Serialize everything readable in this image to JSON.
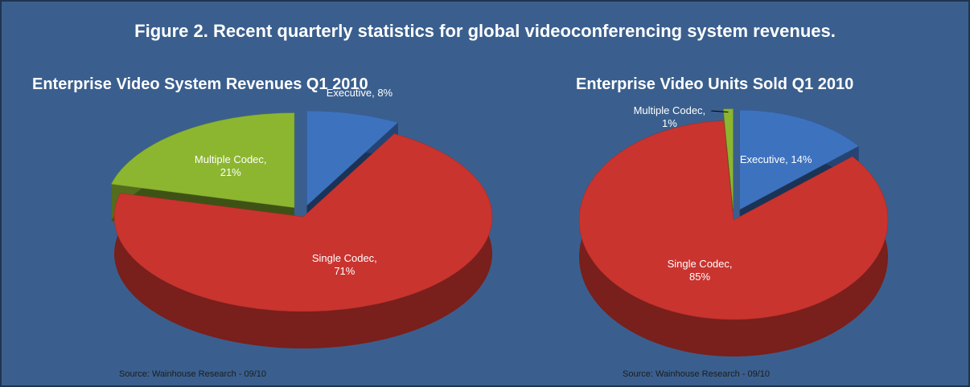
{
  "title": "Figure 2. Recent quarterly statistics for global videoconferencing system revenues.",
  "chart_data": [
    {
      "type": "pie",
      "title": "Enterprise Video System Revenues Q1 2010",
      "values": [
        8,
        71,
        21
      ],
      "value_labels": [
        "Executive, 8%",
        "Single Codec, 71%",
        "Multiple Codec, 21%"
      ],
      "colors": [
        "#3d72bf",
        "#c9342f",
        "#8cb630"
      ],
      "source": "Source: Wainhouse Research - 09/10"
    },
    {
      "type": "pie",
      "title": "Enterprise Video Units Sold Q1 2010",
      "values": [
        14,
        85,
        1
      ],
      "value_labels": [
        "Executive, 14%",
        "Single Codec, 85%",
        "Multiple Codec, 1%"
      ],
      "colors": [
        "#3d72bf",
        "#c9342f",
        "#8cb630"
      ],
      "source": "Source: Wainhouse Research - 09/10"
    }
  ]
}
